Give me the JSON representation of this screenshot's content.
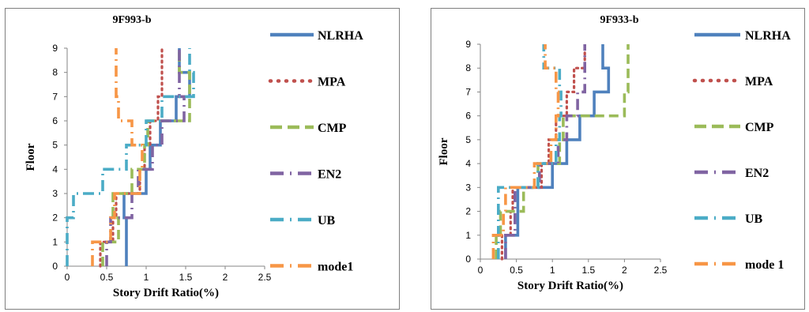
{
  "chart_data": [
    {
      "type": "line",
      "title": "9F993-b",
      "xlabel": "Story Drift Ratio(%)",
      "ylabel": "Floor",
      "xlim": [
        0,
        2.5
      ],
      "ylim": [
        0,
        9
      ],
      "xticks": [
        "0",
        "0.5",
        "1",
        "1.5",
        "2",
        "2.5"
      ],
      "yticks": [
        "0",
        "1",
        "2",
        "3",
        "4",
        "5",
        "6",
        "7",
        "8",
        "9"
      ],
      "grid": false,
      "legend_position": "right",
      "series": [
        {
          "name": "NLRHA",
          "color": "#4f81bd",
          "style": "solid",
          "values": [
            0.75,
            0.75,
            0.72,
            1.0,
            1.05,
            1.18,
            1.38,
            1.55,
            1.42
          ]
        },
        {
          "name": "MPA",
          "color": "#c0504d",
          "style": "dot",
          "values": [
            0.42,
            0.58,
            0.62,
            0.92,
            0.98,
            1.05,
            1.15,
            1.2,
            1.2
          ]
        },
        {
          "name": "CMP",
          "color": "#9bbb59",
          "style": "dash",
          "values": [
            0.45,
            0.65,
            0.58,
            0.82,
            0.98,
            1.02,
            1.55,
            1.55,
            1.42
          ]
        },
        {
          "name": "EN2",
          "color": "#8064a2",
          "style": "dashdot",
          "values": [
            0.5,
            0.55,
            0.82,
            0.9,
            1.08,
            1.2,
            1.48,
            1.42,
            1.42
          ]
        },
        {
          "name": "UB",
          "color": "#4bacc6",
          "style": "dashdot",
          "values": [
            0.0,
            0.0,
            0.08,
            0.45,
            0.75,
            1.0,
            1.2,
            1.6,
            1.55
          ]
        },
        {
          "name": "mode1",
          "color": "#f79646",
          "style": "dashdot",
          "values": [
            0.32,
            0.55,
            0.6,
            0.92,
            0.95,
            0.82,
            0.65,
            0.62,
            0.62
          ]
        }
      ]
    },
    {
      "type": "line",
      "title": "9F933-b",
      "xlabel": "Story Drift Ratio(%)",
      "ylabel": "Floor",
      "xlim": [
        0,
        2.5
      ],
      "ylim": [
        0,
        9
      ],
      "xticks": [
        "0",
        "0.5",
        "1",
        "1.5",
        "2",
        "2.5"
      ],
      "yticks": [
        "0",
        "1",
        "2",
        "3",
        "4",
        "5",
        "6",
        "7",
        "8",
        "9"
      ],
      "grid": false,
      "legend_position": "right",
      "series": [
        {
          "name": "NLRHA",
          "color": "#4f81bd",
          "style": "solid",
          "values": [
            0.35,
            0.52,
            0.52,
            1.0,
            1.2,
            1.38,
            1.58,
            1.78,
            1.7
          ]
        },
        {
          "name": "MPA",
          "color": "#c0504d",
          "style": "dot",
          "values": [
            0.3,
            0.42,
            0.45,
            0.85,
            0.95,
            1.05,
            1.2,
            1.3,
            1.45
          ]
        },
        {
          "name": "CMP",
          "color": "#9bbb59",
          "style": "dash",
          "values": [
            0.22,
            0.28,
            0.6,
            0.8,
            1.1,
            1.15,
            2.0,
            2.05,
            2.05
          ]
        },
        {
          "name": "EN2",
          "color": "#8064a2",
          "style": "dashdot",
          "values": [
            0.35,
            0.48,
            0.48,
            0.82,
            1.08,
            1.2,
            1.35,
            1.45,
            1.45
          ]
        },
        {
          "name": "UB",
          "color": "#4bacc6",
          "style": "dashdot",
          "values": [
            0.25,
            0.25,
            0.25,
            0.8,
            1.05,
            1.1,
            1.12,
            1.1,
            0.88
          ]
        },
        {
          "name": "mode 1",
          "color": "#f79646",
          "style": "dashdot",
          "values": [
            0.18,
            0.32,
            0.35,
            0.75,
            0.98,
            1.05,
            1.08,
            1.05,
            0.9
          ]
        }
      ]
    }
  ]
}
